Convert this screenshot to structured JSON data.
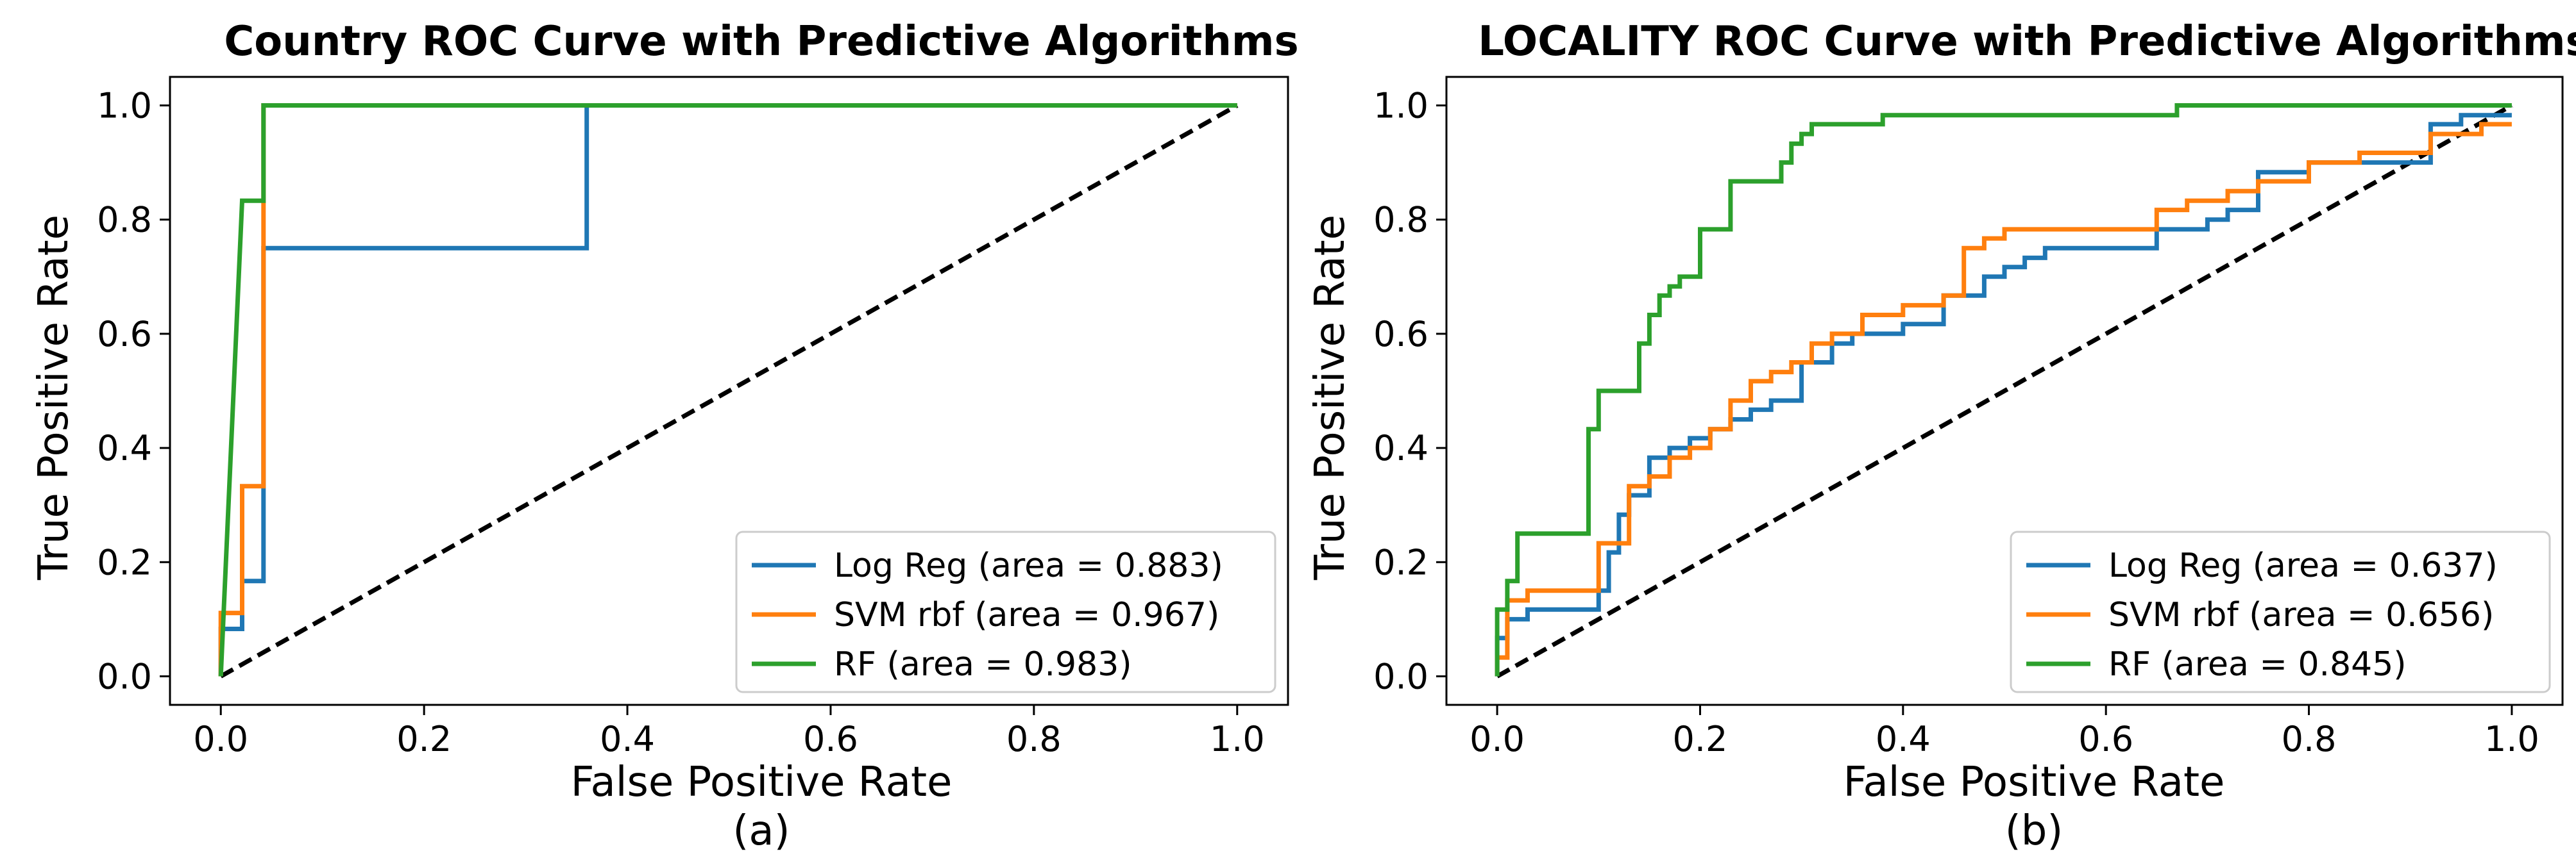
{
  "chart_data": [
    {
      "type": "line",
      "title": "Country ROC Curve with Predictive Algorithms",
      "xlabel": "False Positive Rate",
      "ylabel": "True Positive Rate",
      "caption": "(a)",
      "xlim": [
        -0.05,
        1.05
      ],
      "ylim": [
        -0.05,
        1.05
      ],
      "xticks": [
        "0.0",
        "0.2",
        "0.4",
        "0.6",
        "0.8",
        "1.0"
      ],
      "yticks": [
        "0.0",
        "0.2",
        "0.4",
        "0.6",
        "0.8",
        "1.0"
      ],
      "legend_position": "lower-right",
      "series": [
        {
          "name": "Log Reg (area = 0.883)",
          "color": "#1f77b4",
          "x": [
            0,
            0,
            0.021,
            0.021,
            0.042,
            0.042,
            0.042,
            0.36,
            0.36,
            1.0
          ],
          "y": [
            0,
            0.083,
            0.083,
            0.167,
            0.167,
            0.333,
            0.75,
            0.75,
            1.0,
            1.0
          ]
        },
        {
          "name": "SVM rbf (area = 0.967)",
          "color": "#ff7f0e",
          "x": [
            0,
            0,
            0.021,
            0.021,
            0.042,
            0.042,
            0.042,
            1.0
          ],
          "y": [
            0,
            0.111,
            0.111,
            0.333,
            0.333,
            0.833,
            1.0,
            1.0
          ]
        },
        {
          "name": "RF (area = 0.983)",
          "color": "#2ca02c",
          "x": [
            0,
            0.021,
            0.042,
            0.042,
            1.0
          ],
          "y": [
            0,
            0.833,
            0.833,
            1.0,
            1.0
          ]
        }
      ],
      "diagonal": {
        "x": [
          0,
          1
        ],
        "y": [
          0,
          1
        ],
        "style": "dashed",
        "color": "#000000"
      }
    },
    {
      "type": "line",
      "title": "LOCALITY ROC Curve with Predictive Algorithms",
      "xlabel": "False Positive Rate",
      "ylabel": "True Positive Rate",
      "caption": "(b)",
      "xlim": [
        -0.05,
        1.05
      ],
      "ylim": [
        -0.05,
        1.05
      ],
      "xticks": [
        "0.0",
        "0.2",
        "0.4",
        "0.6",
        "0.8",
        "1.0"
      ],
      "yticks": [
        "0.0",
        "0.2",
        "0.4",
        "0.6",
        "0.8",
        "1.0"
      ],
      "legend_position": "lower-right",
      "series": [
        {
          "name": "Log Reg (area = 0.637)",
          "color": "#1f77b4",
          "x": [
            0,
            0,
            0.01,
            0.01,
            0.03,
            0.03,
            0.1,
            0.1,
            0.11,
            0.11,
            0.12,
            0.12,
            0.13,
            0.13,
            0.15,
            0.15,
            0.17,
            0.17,
            0.19,
            0.19,
            0.21,
            0.21,
            0.23,
            0.23,
            0.25,
            0.25,
            0.27,
            0.27,
            0.3,
            0.3,
            0.33,
            0.33,
            0.35,
            0.35,
            0.4,
            0.4,
            0.44,
            0.44,
            0.48,
            0.48,
            0.5,
            0.5,
            0.52,
            0.52,
            0.54,
            0.54,
            0.56,
            0.56,
            0.6,
            0.6,
            0.65,
            0.65,
            0.7,
            0.7,
            0.72,
            0.72,
            0.75,
            0.75,
            0.8,
            0.8,
            0.92,
            0.92,
            0.95,
            0.95,
            1.0
          ],
          "y": [
            0,
            0.067,
            0.067,
            0.1,
            0.1,
            0.117,
            0.117,
            0.15,
            0.15,
            0.217,
            0.217,
            0.283,
            0.283,
            0.317,
            0.317,
            0.383,
            0.383,
            0.4,
            0.4,
            0.417,
            0.417,
            0.433,
            0.433,
            0.45,
            0.45,
            0.467,
            0.467,
            0.483,
            0.483,
            0.55,
            0.55,
            0.583,
            0.583,
            0.6,
            0.6,
            0.617,
            0.617,
            0.667,
            0.667,
            0.7,
            0.7,
            0.717,
            0.717,
            0.733,
            0.733,
            0.75,
            0.75,
            0.75,
            0.75,
            0.75,
            0.75,
            0.783,
            0.783,
            0.8,
            0.8,
            0.817,
            0.817,
            0.883,
            0.883,
            0.9,
            0.9,
            0.967,
            0.967,
            0.983,
            0.983
          ]
        },
        {
          "name": "SVM rbf (area = 0.656)",
          "color": "#ff7f0e",
          "x": [
            0,
            0,
            0.01,
            0.01,
            0.03,
            0.03,
            0.05,
            0.05,
            0.1,
            0.1,
            0.13,
            0.13,
            0.15,
            0.15,
            0.17,
            0.17,
            0.19,
            0.19,
            0.21,
            0.21,
            0.23,
            0.23,
            0.25,
            0.25,
            0.27,
            0.27,
            0.29,
            0.29,
            0.31,
            0.31,
            0.33,
            0.33,
            0.36,
            0.36,
            0.4,
            0.4,
            0.44,
            0.44,
            0.46,
            0.46,
            0.48,
            0.48,
            0.5,
            0.5,
            0.55,
            0.55,
            0.65,
            0.65,
            0.68,
            0.68,
            0.72,
            0.72,
            0.75,
            0.75,
            0.8,
            0.8,
            0.85,
            0.85,
            0.92,
            0.92,
            0.97,
            0.97,
            1.0
          ],
          "y": [
            0,
            0.033,
            0.033,
            0.133,
            0.133,
            0.15,
            0.15,
            0.15,
            0.15,
            0.233,
            0.233,
            0.333,
            0.333,
            0.35,
            0.35,
            0.383,
            0.383,
            0.4,
            0.4,
            0.433,
            0.433,
            0.483,
            0.483,
            0.517,
            0.517,
            0.533,
            0.533,
            0.55,
            0.55,
            0.583,
            0.583,
            0.6,
            0.6,
            0.633,
            0.633,
            0.65,
            0.65,
            0.667,
            0.667,
            0.75,
            0.75,
            0.767,
            0.767,
            0.783,
            0.783,
            0.783,
            0.783,
            0.817,
            0.817,
            0.833,
            0.833,
            0.85,
            0.85,
            0.867,
            0.867,
            0.9,
            0.9,
            0.917,
            0.917,
            0.95,
            0.95,
            0.967,
            0.967
          ]
        },
        {
          "name": "RF (area = 0.845)",
          "color": "#2ca02c",
          "x": [
            0,
            0,
            0.01,
            0.01,
            0.02,
            0.02,
            0.05,
            0.05,
            0.09,
            0.09,
            0.1,
            0.1,
            0.11,
            0.11,
            0.14,
            0.14,
            0.15,
            0.15,
            0.16,
            0.16,
            0.17,
            0.17,
            0.18,
            0.18,
            0.2,
            0.2,
            0.23,
            0.23,
            0.28,
            0.28,
            0.29,
            0.29,
            0.3,
            0.3,
            0.31,
            0.31,
            0.32,
            0.32,
            0.38,
            0.38,
            0.5,
            0.5,
            0.67,
            0.67,
            1.0
          ],
          "y": [
            0,
            0.117,
            0.117,
            0.167,
            0.167,
            0.25,
            0.25,
            0.25,
            0.25,
            0.433,
            0.433,
            0.5,
            0.5,
            0.5,
            0.5,
            0.583,
            0.583,
            0.633,
            0.633,
            0.667,
            0.667,
            0.683,
            0.683,
            0.7,
            0.7,
            0.783,
            0.783,
            0.867,
            0.867,
            0.9,
            0.9,
            0.933,
            0.933,
            0.95,
            0.95,
            0.967,
            0.967,
            0.967,
            0.967,
            0.983,
            0.983,
            0.983,
            0.983,
            1.0,
            1.0
          ]
        }
      ],
      "diagonal": {
        "x": [
          0,
          1
        ],
        "y": [
          0,
          1
        ],
        "style": "dashed",
        "color": "#000000"
      }
    }
  ]
}
